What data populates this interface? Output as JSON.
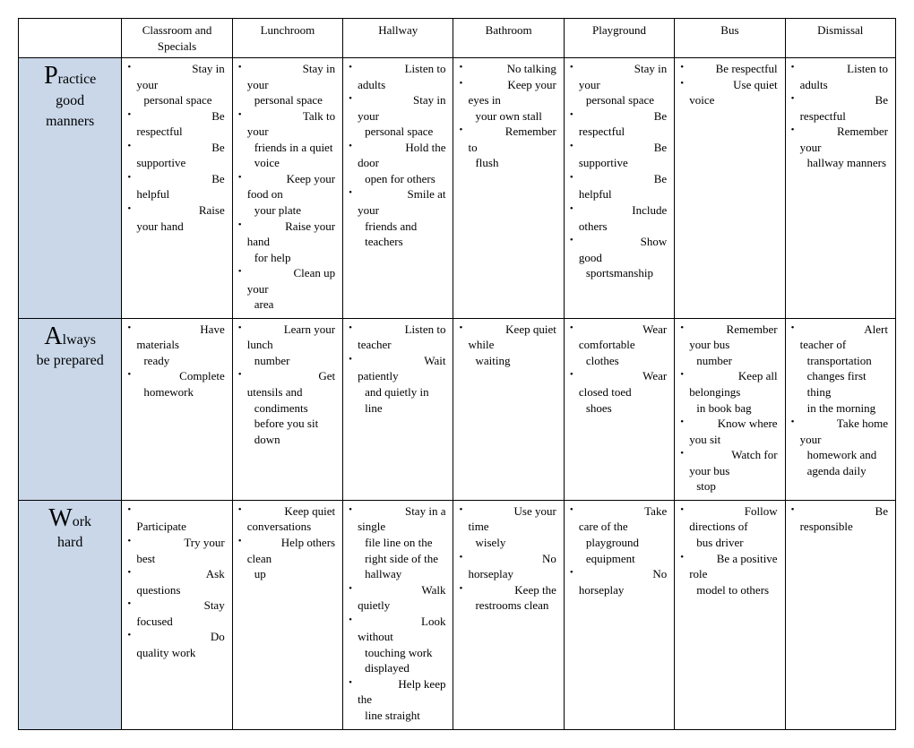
{
  "columns": [
    "Classroom and Specials",
    "Lunchroom",
    "Hallway",
    "Bathroom",
    "Playground",
    "Bus",
    "Dismissal"
  ],
  "rows": [
    {
      "head_big": "P",
      "head_rest": "ractice",
      "head_line2a": "good",
      "head_line2b": "manners",
      "cells": [
        [
          {
            "f": "Stay in",
            "c": [
              "your",
              "  personal space"
            ]
          },
          {
            "f": "Be",
            "c": [
              "respectful"
            ]
          },
          {
            "f": "Be",
            "c": [
              "supportive"
            ]
          },
          {
            "f": "Be",
            "c": [
              "helpful"
            ]
          },
          {
            "f": "Raise",
            "c": [
              "your hand"
            ]
          }
        ],
        [
          {
            "f": "Stay in",
            "c": [
              "your",
              "  personal space"
            ]
          },
          {
            "f": "Talk to",
            "c": [
              "your",
              "  friends in a quiet",
              "  voice"
            ]
          },
          {
            "f": "Keep your",
            "c": [
              "food on",
              "  your plate"
            ]
          },
          {
            "f": "Raise your",
            "c": [
              "hand",
              "  for help"
            ]
          },
          {
            "f": "Clean up",
            "c": [
              "your",
              "  area"
            ]
          }
        ],
        [
          {
            "f": "Listen to",
            "c": [
              "adults"
            ]
          },
          {
            "f": "Stay in",
            "c": [
              "your",
              "  personal space"
            ]
          },
          {
            "f": "Hold the",
            "c": [
              "door",
              "  open for others"
            ]
          },
          {
            "f": "Smile at",
            "c": [
              "your",
              "  friends and",
              "  teachers"
            ]
          }
        ],
        [
          {
            "f": "No talking",
            "c": []
          },
          {
            "f": "Keep your",
            "c": [
              "eyes in",
              "  your own stall"
            ]
          },
          {
            "f": "Remember",
            "c": [
              "to",
              "  flush"
            ]
          }
        ],
        [
          {
            "f": "Stay in",
            "c": [
              "your",
              "  personal space"
            ]
          },
          {
            "f": "Be",
            "c": [
              "respectful"
            ]
          },
          {
            "f": "Be",
            "c": [
              "supportive"
            ]
          },
          {
            "f": "Be",
            "c": [
              "helpful"
            ]
          },
          {
            "f": "Include",
            "c": [
              "others"
            ]
          },
          {
            "f": "Show",
            "c": [
              "good",
              "  sportsmanship"
            ]
          }
        ],
        [
          {
            "f": "Be respectful",
            "c": []
          },
          {
            "f": "Use quiet",
            "c": [
              "voice"
            ]
          }
        ],
        [
          {
            "f": "Listen to",
            "c": [
              "adults"
            ]
          },
          {
            "f": "Be",
            "c": [
              "respectful"
            ]
          },
          {
            "f": "Remember",
            "c": [
              "your",
              "  hallway manners"
            ]
          }
        ]
      ]
    },
    {
      "head_big": "A",
      "head_rest": "lways",
      "head_line2a": "be prepared",
      "head_line2b": "",
      "cells": [
        [
          {
            "f": "Have",
            "c": [
              "materials",
              "  ready"
            ]
          },
          {
            "f": "Complete",
            "c": [
              "  homework"
            ]
          }
        ],
        [
          {
            "f": "Learn your",
            "c": [
              "lunch",
              "  number"
            ]
          },
          {
            "f": "Get",
            "c": [
              "utensils and",
              "  condiments",
              "  before you sit",
              "  down"
            ]
          }
        ],
        [
          {
            "f": "Listen to",
            "c": [
              "teacher"
            ]
          },
          {
            "f": "Wait",
            "c": [
              "patiently",
              "  and quietly in",
              "  line"
            ]
          }
        ],
        [
          {
            "f": "Keep quiet",
            "c": [
              "while",
              "  waiting"
            ]
          }
        ],
        [
          {
            "f": "Wear",
            "c": [
              "comfortable",
              "  clothes"
            ]
          },
          {
            "f": "Wear",
            "c": [
              "closed toed",
              "  shoes"
            ]
          }
        ],
        [
          {
            "f": "Remember",
            "c": [
              "your bus",
              "  number"
            ]
          },
          {
            "f": "Keep all",
            "c": [
              "belongings",
              "  in book bag"
            ]
          },
          {
            "f": "Know where",
            "c": [
              "you sit"
            ]
          },
          {
            "f": "Watch for",
            "c": [
              "your bus",
              "  stop"
            ]
          }
        ],
        [
          {
            "f": "Alert",
            "c": [
              "teacher of",
              "  transportation",
              "  changes first thing",
              "  in the morning"
            ]
          },
          {
            "f": "Take home",
            "c": [
              "your",
              "  homework and",
              "  agenda daily"
            ]
          }
        ]
      ]
    },
    {
      "head_big": "W",
      "head_rest": "ork",
      "head_line2a": "hard",
      "head_line2b": "",
      "cells": [
        [
          {
            "f": "",
            "c": [
              "Participate"
            ]
          },
          {
            "f": "Try your",
            "c": [
              "best"
            ]
          },
          {
            "f": "Ask",
            "c": [
              "questions"
            ]
          },
          {
            "f": "Stay",
            "c": [
              "focused"
            ]
          },
          {
            "f": "Do",
            "c": [
              "quality work"
            ]
          }
        ],
        [
          {
            "f": "Keep quiet",
            "c": [
              "conversations"
            ]
          },
          {
            "f": "Help others",
            "c": [
              "clean",
              "  up"
            ]
          }
        ],
        [
          {
            "f": "Stay in a",
            "c": [
              "single",
              "  file line on the",
              "  right side of the",
              "  hallway"
            ]
          },
          {
            "f": "Walk",
            "c": [
              "quietly"
            ]
          },
          {
            "f": "Look",
            "c": [
              "without",
              "  touching work",
              "  displayed"
            ]
          },
          {
            "f": "Help keep",
            "c": [
              "the",
              "  line straight"
            ]
          }
        ],
        [
          {
            "f": "Use your",
            "c": [
              "time",
              "  wisely"
            ]
          },
          {
            "f": "No",
            "c": [
              "horseplay"
            ]
          },
          {
            "f": "Keep the",
            "c": [
              "  restrooms clean"
            ]
          }
        ],
        [
          {
            "f": "Take",
            "c": [
              "care of the",
              "  playground",
              "  equipment"
            ]
          },
          {
            "f": "No",
            "c": [
              "horseplay"
            ]
          }
        ],
        [
          {
            "f": "Follow",
            "c": [
              "directions of",
              "  bus driver"
            ]
          },
          {
            "f": "Be a positive",
            "c": [
              "role",
              "  model to others"
            ]
          }
        ],
        [
          {
            "f": "Be",
            "c": [
              "responsible"
            ]
          }
        ]
      ]
    }
  ],
  "colors": {
    "rowhead_bg": "#c9d7e9",
    "border": "#000000",
    "bg": "#ffffff"
  }
}
